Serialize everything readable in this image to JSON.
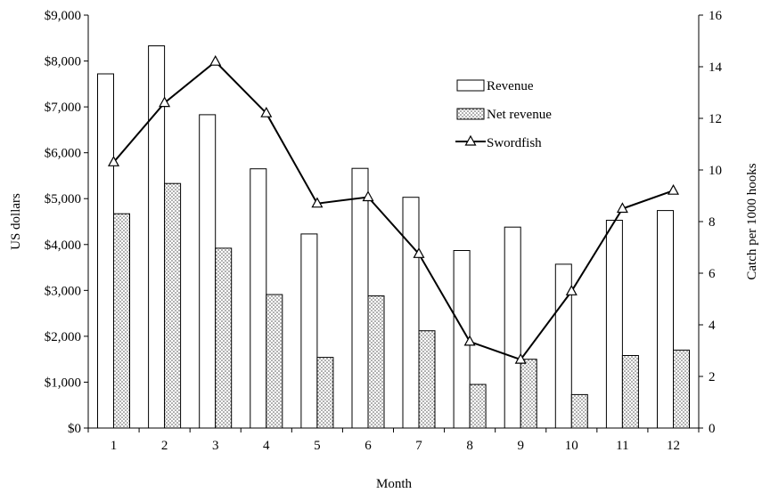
{
  "chart_data": {
    "type": "bar",
    "xlabel": "Month",
    "ylabel": "US dollars",
    "y2label": "Catch per 1000 hooks",
    "categories": [
      "1",
      "2",
      "3",
      "4",
      "5",
      "6",
      "7",
      "8",
      "9",
      "10",
      "11",
      "12"
    ],
    "ylim": [
      0,
      9000
    ],
    "yticks": [
      "$0",
      "$1,000",
      "$2,000",
      "$3,000",
      "$4,000",
      "$5,000",
      "$6,000",
      "$7,000",
      "$8,000",
      "$9,000"
    ],
    "y2lim": [
      0,
      16
    ],
    "y2ticks": [
      "0",
      "2",
      "4",
      "6",
      "8",
      "10",
      "12",
      "14",
      "16"
    ],
    "grid": false,
    "legend_position": "top-right",
    "series": [
      {
        "name": "Revenue",
        "type": "bar",
        "axis": "left",
        "values": [
          7720,
          8330,
          6830,
          5650,
          4230,
          5660,
          5030,
          3870,
          4380,
          3570,
          4530,
          4740
        ]
      },
      {
        "name": "Net revenue",
        "type": "bar",
        "axis": "left",
        "values": [
          4670,
          5330,
          3920,
          2910,
          1540,
          2880,
          2120,
          950,
          1500,
          730,
          1580,
          1700
        ]
      },
      {
        "name": "Swordfish",
        "type": "line",
        "axis": "right",
        "values": [
          10.3,
          12.6,
          14.2,
          12.2,
          8.7,
          8.95,
          6.75,
          3.35,
          2.65,
          5.3,
          8.5,
          9.2
        ]
      }
    ]
  }
}
